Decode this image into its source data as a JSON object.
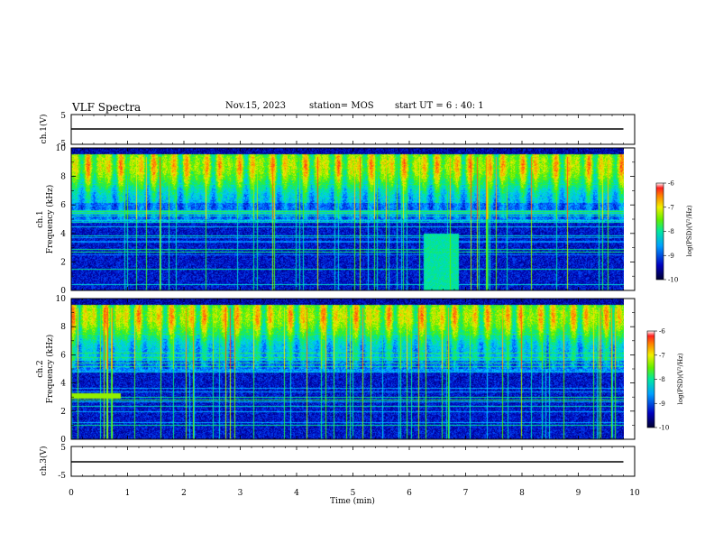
{
  "header": {
    "title": "VLF Spectra",
    "date": "Nov.15, 2023",
    "station": "station= MOS",
    "start_ut": "start UT =  6 : 40: 1"
  },
  "chart_data": {
    "type": "heatmap",
    "title": "VLF Spectra",
    "xlabel": "Time (min)",
    "xlim": [
      0,
      10
    ],
    "x_ticks": [
      "0",
      "1",
      "2",
      "3",
      "4",
      "5",
      "6",
      "7",
      "8",
      "9",
      "10"
    ],
    "panels": [
      {
        "id": "ch1-waveform",
        "type": "line",
        "ylabel": "ch.1(V)",
        "ylim": [
          -5,
          5
        ],
        "y_ticks": [
          "5",
          "-5"
        ],
        "level": -0.3,
        "x_end": 9.8
      },
      {
        "id": "ch1-spectrogram",
        "type": "heatmap",
        "ylabel": [
          "ch.1",
          "Frequency (kHz)"
        ],
        "ylim": [
          0,
          10
        ],
        "y_ticks": [
          "0",
          "2",
          "4",
          "6",
          "8",
          "10"
        ],
        "colorbar": {
          "label": "log(PSD)(V²/Hz)",
          "range": [
            -10,
            -6
          ],
          "ticks": [
            "-6",
            "-7",
            "-8",
            "-9",
            "-10"
          ]
        }
      },
      {
        "id": "ch2-spectrogram",
        "type": "heatmap",
        "ylabel": [
          "ch.2",
          "Frequency (kHz)"
        ],
        "ylim": [
          0,
          10
        ],
        "y_ticks": [
          "0",
          "2",
          "4",
          "6",
          "8",
          "10"
        ],
        "colorbar": {
          "label": "log(PSD)(V²/Hz)",
          "range": [
            -10,
            -6
          ],
          "ticks": [
            "-6",
            "-7",
            "-8",
            "-9",
            "-10"
          ]
        }
      },
      {
        "id": "ch3-waveform",
        "type": "line",
        "ylabel": "ch.3(V)",
        "ylim": [
          -5,
          5
        ],
        "y_ticks": [
          "5",
          "-5"
        ],
        "level": -0.5,
        "x_end": 9.8
      }
    ],
    "data_end_min": 9.8,
    "colormap": [
      "#000030",
      "#0000b0",
      "#0050ff",
      "#00c8ff",
      "#00e890",
      "#50f000",
      "#e8f000",
      "#ff9000",
      "#ff2020",
      "#ffffff"
    ]
  }
}
